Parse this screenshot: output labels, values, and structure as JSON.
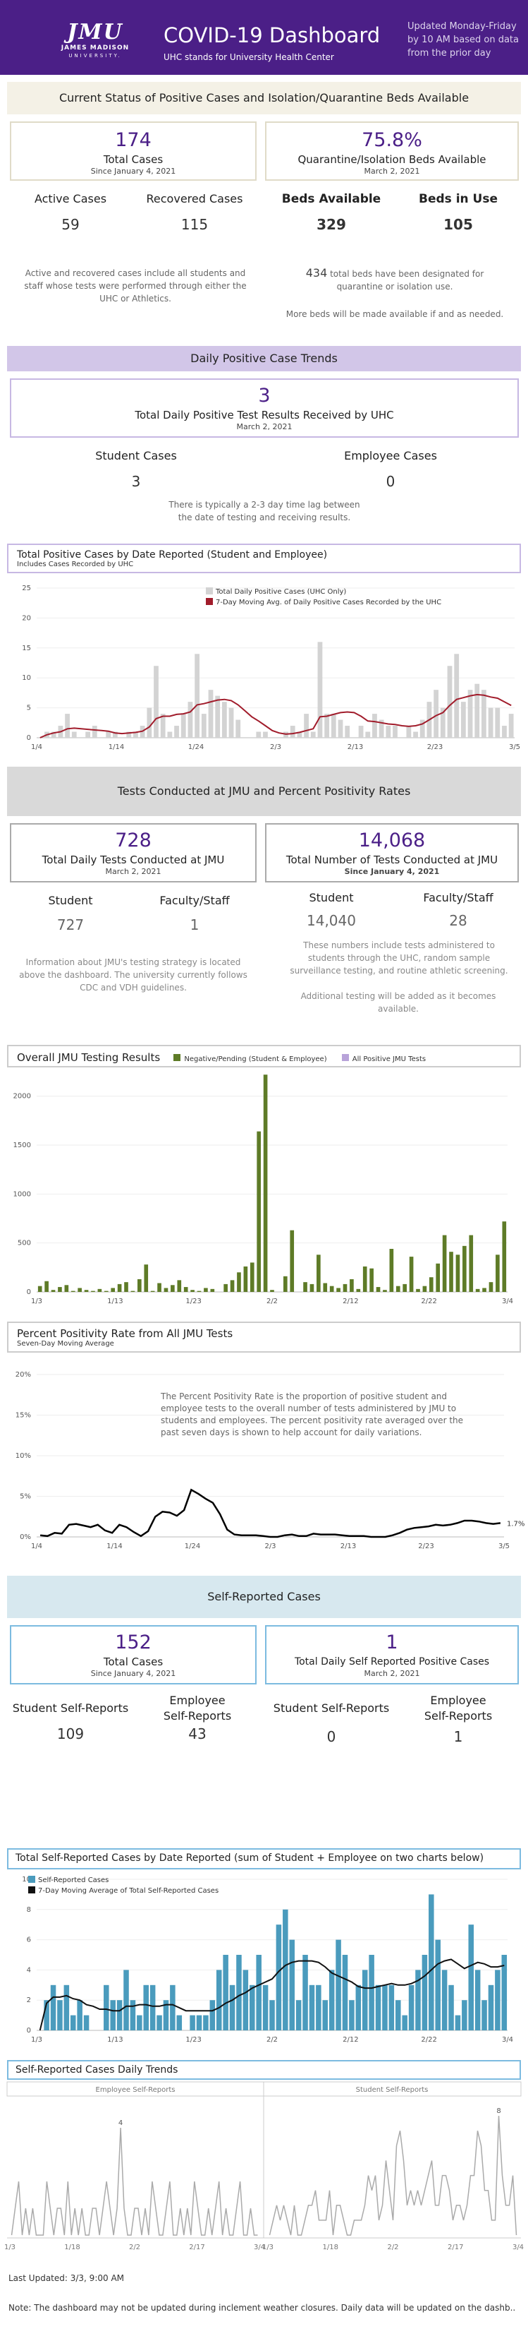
{
  "header": {
    "logo": "JMU",
    "logo_sub1": "JAMES MADISON",
    "logo_sub2": "UNIVERSITY.",
    "title": "COVID-19 Dashboard",
    "subtitle": "UHC stands for University Health Center",
    "update_note": "Updated Monday-Friday by 10 AM based on data from the prior day"
  },
  "status": {
    "band": "Current Status of Positive Cases and Isolation/Quarantine Beds Available",
    "total_cases": "174",
    "total_cases_label": "Total Cases",
    "total_cases_since": "Since January 4, 2021",
    "quarantine_pct": "75.8%",
    "quarantine_label": "Quarantine/Isolation Beds Available",
    "quarantine_date": "March 2, 2021",
    "active_label": "Active Cases",
    "active_value": "59",
    "recovered_label": "Recovered Cases",
    "recovered_value": "115",
    "beds_avail_label": "Beds Available",
    "beds_avail_value": "329",
    "beds_use_label": "Beds in Use",
    "beds_use_value": "105",
    "cases_note": "Active and recovered cases include all students and staff whose tests were performed through either the UHC or Athletics.",
    "beds_note_num": "434",
    "beds_note": "total beds have been designated for quarantine or isolation use.",
    "beds_more": "More beds will be made available if and as needed."
  },
  "daily": {
    "band": "Daily Positive Case Trends",
    "value": "3",
    "label": "Total Daily Positive Test Results Received by UHC",
    "date": "March 2, 2021",
    "student_label": "Student Cases",
    "student_value": "3",
    "employee_label": "Employee Cases",
    "employee_value": "0",
    "note": "There is typically a 2-3 day time lag between the date of testing and receiving results."
  },
  "chart1": {
    "title": "Total Positive Cases by Date Reported (Student and Employee)",
    "subtitle": "Includes Cases Recorded by UHC",
    "legend_bar": "Total Daily Positive Cases (UHC Only)",
    "legend_line": "7-Day Moving Avg. of Daily Positive Cases Recorded by the UHC",
    "yticks": [
      "0",
      "5",
      "10",
      "15",
      "20",
      "25"
    ],
    "xticks": [
      "1/4",
      "1/14",
      "1/24",
      "2/3",
      "2/13",
      "2/23",
      "3/5"
    ],
    "bar_color": "#d3d3d3",
    "line_color": "#a11c2b"
  },
  "tests": {
    "band": "Tests Conducted at JMU and Percent Positivity Rates",
    "daily_value": "728",
    "daily_label": "Total Daily Tests Conducted at JMU",
    "daily_date": "March 2, 2021",
    "total_value": "14,068",
    "total_label": "Total Number of Tests Conducted at JMU",
    "total_since": "Since January 4, 2021",
    "student_label": "Student",
    "student_daily": "727",
    "faculty_label": "Faculty/Staff",
    "faculty_daily": "1",
    "student_total": "14,040",
    "faculty_total": "28",
    "strategy_note": "Information about JMU's testing strategy is located above the dashboard. The university currently follows CDC and VDH guidelines.",
    "total_note": "These numbers include tests administered to students through the UHC, random sample surveillance testing, and routine athletic screening.",
    "additional_note": "Additional testing will be added as it becomes available."
  },
  "chart2": {
    "title": "Overall JMU Testing Results",
    "legend_neg": "Negative/Pending (Student & Employee)",
    "legend_pos": "All Positive JMU Tests",
    "yticks": [
      "0",
      "500",
      "1000",
      "1500",
      "2000"
    ],
    "xticks": [
      "1/3",
      "1/13",
      "1/23",
      "2/2",
      "2/12",
      "2/22",
      "3/4"
    ],
    "neg_color": "#5e7b27",
    "pos_color": "#b8a3d9"
  },
  "chart3": {
    "title": "Percent Positivity Rate from All JMU Tests",
    "subtitle": "Seven-Day Moving Average",
    "note": "The Percent Positivity Rate is the proportion of positive student and employee tests to the overall number of tests administered by JMU to students and employees. The percent positivity rate averaged over the past seven days is shown to help account for daily variations.",
    "yticks": [
      "0%",
      "5%",
      "10%",
      "15%",
      "20%"
    ],
    "xticks": [
      "1/4",
      "1/14",
      "1/24",
      "2/3",
      "2/13",
      "2/23",
      "3/5"
    ],
    "last_label": "1.7%"
  },
  "self": {
    "band": "Self-Reported Cases",
    "total_value": "152",
    "total_label": "Total Cases",
    "total_since": "Since January 4, 2021",
    "daily_value": "1",
    "daily_label": "Total Daily Self Reported Positive Cases",
    "daily_date": "March 2, 2021",
    "student_label": "Student Self-Reports",
    "student_total": "109",
    "employee_label1": "Employee",
    "employee_label2": "Self-Reports",
    "employee_total": "43",
    "student_daily": "0",
    "employee_daily": "1"
  },
  "chart4": {
    "title": "Total Self-Reported Cases by Date Reported (sum of Student + Employee on two charts below)",
    "legend_bar": "Self-Reported Cases",
    "legend_line": "7-Day Moving Average of Total Self-Reported Cases",
    "yticks": [
      "0",
      "2",
      "4",
      "6",
      "8",
      "10"
    ],
    "xticks": [
      "1/3",
      "1/13",
      "1/23",
      "2/2",
      "2/12",
      "2/22",
      "3/4"
    ],
    "bar_color": "#4a9bbd"
  },
  "chart5": {
    "title": "Self-Reported Cases Daily Trends",
    "left_label": "Employee Self-Reports",
    "right_label": "Student Self-Reports",
    "left_xticks": [
      "1/3",
      "1/18",
      "2/2",
      "2/17",
      "3/4"
    ],
    "right_xticks": [
      "1/3",
      "1/18",
      "2/2",
      "2/17",
      "3/4"
    ],
    "left_peak": "4",
    "right_peak": "8"
  },
  "footer": {
    "updated": "Last Updated: 3/3, 9:00 AM",
    "note": "Note: The dashboard may not be updated during inclement weather closures. Daily data will be updated on the dashb.."
  },
  "chart_data": [
    {
      "type": "bar",
      "title": "Total Positive Cases by Date Reported (Student and Employee)",
      "x_start": "2021-01-04",
      "ylim": [
        0,
        25
      ],
      "series": [
        {
          "name": "Total Daily Positive Cases (UHC Only)",
          "values": [
            0,
            1,
            1,
            2,
            4,
            1,
            0,
            1,
            2,
            0,
            1,
            1,
            0,
            1,
            1,
            2,
            5,
            12,
            4,
            1,
            2,
            4,
            6,
            14,
            4,
            8,
            7,
            6,
            5,
            3,
            0,
            0,
            1,
            1,
            0,
            0,
            1,
            2,
            1,
            4,
            1,
            16,
            4,
            4,
            3,
            2,
            0,
            2,
            1,
            4,
            3,
            2,
            2,
            0,
            2,
            1,
            3,
            6,
            8,
            5,
            12,
            14,
            6,
            8,
            9,
            8,
            5,
            5,
            2,
            4
          ]
        },
        {
          "name": "7-Day Moving Avg. of Daily Positive Cases Recorded by the UHC",
          "values": [
            0,
            0.5,
            0.8,
            1,
            1.5,
            1.6,
            1.5,
            1.4,
            1.3,
            1.2,
            1.1,
            0.8,
            0.7,
            0.8,
            0.9,
            1.1,
            1.8,
            3.2,
            3.6,
            3.6,
            3.9,
            4,
            4.3,
            5.5,
            5.7,
            6,
            6.3,
            6.4,
            6.2,
            5.5,
            4.5,
            3.5,
            2.8,
            2,
            1.2,
            0.8,
            0.6,
            0.7,
            0.9,
            1.2,
            1.5,
            3.5,
            3.6,
            3.9,
            4.2,
            4.3,
            4.2,
            3.6,
            2.8,
            2.7,
            2.5,
            2.3,
            2.2,
            2,
            1.9,
            2,
            2.3,
            3,
            3.7,
            4.2,
            5.4,
            6.4,
            6.7,
            7,
            7.2,
            7.1,
            6.8,
            6.6,
            6,
            5.4
          ]
        }
      ]
    },
    {
      "type": "bar",
      "title": "Overall JMU Testing Results",
      "x_start": "2021-01-03",
      "ylim": [
        0,
        2200
      ],
      "series": [
        {
          "name": "Negative/Pending (Student & Employee)",
          "values": [
            60,
            110,
            20,
            50,
            70,
            10,
            40,
            20,
            10,
            30,
            10,
            40,
            80,
            100,
            10,
            130,
            280,
            10,
            90,
            40,
            70,
            120,
            50,
            20,
            10,
            40,
            30,
            0,
            80,
            120,
            200,
            260,
            300,
            1640,
            2220,
            20,
            0,
            160,
            630,
            0,
            100,
            80,
            380,
            90,
            60,
            40,
            80,
            130,
            30,
            260,
            240,
            50,
            20,
            440,
            60,
            80,
            360,
            30,
            60,
            150,
            290,
            580,
            410,
            380,
            470,
            580,
            30,
            40,
            100,
            380,
            720
          ]
        }
      ]
    },
    {
      "type": "line",
      "title": "Percent Positivity Rate from All JMU Tests",
      "x_start": "2021-01-04",
      "ylim": [
        0,
        20
      ],
      "series": [
        {
          "name": "Seven-Day Moving Average",
          "values": [
            0.2,
            0.1,
            0.5,
            0.4,
            1.5,
            1.6,
            1.4,
            1.2,
            1.5,
            0.8,
            0.5,
            1.5,
            1.2,
            0.6,
            0.1,
            0.7,
            2.5,
            3.1,
            3.0,
            2.6,
            3.3,
            5.8,
            5.3,
            4.7,
            4.2,
            2.8,
            0.9,
            0.3,
            0.2,
            0.2,
            0.2,
            0.1,
            0.0,
            0.0,
            0.2,
            0.3,
            0.1,
            0.1,
            0.4,
            0.3,
            0.3,
            0.3,
            0.2,
            0.1,
            0.1,
            0.1,
            0.0,
            0.0,
            0.0,
            0.2,
            0.5,
            0.9,
            1.1,
            1.2,
            1.3,
            1.5,
            1.4,
            1.5,
            1.7,
            2.0,
            2.0,
            1.9,
            1.7,
            1.6,
            1.7
          ]
        }
      ]
    },
    {
      "type": "bar",
      "title": "Total Self-Reported Cases by Date Reported (sum of Student + Employee on two charts below)",
      "x_start": "2021-01-03",
      "ylim": [
        0,
        10
      ],
      "series": [
        {
          "name": "Self-Reported Cases",
          "values": [
            0,
            2,
            3,
            2,
            3,
            1,
            2,
            1,
            0,
            0,
            3,
            2,
            2,
            4,
            2,
            1,
            3,
            3,
            1,
            2,
            3,
            1,
            0,
            1,
            1,
            1,
            2,
            4,
            5,
            3,
            5,
            4,
            3,
            5,
            3,
            2,
            7,
            8,
            6,
            2,
            5,
            3,
            3,
            2,
            4,
            6,
            5,
            2,
            3,
            4,
            5,
            3,
            3,
            3,
            2,
            1,
            3,
            4,
            5,
            9,
            6,
            4,
            3,
            1,
            2,
            7,
            4,
            2,
            3,
            4,
            5
          ]
        },
        {
          "name": "7-Day Moving Average of Total Self-Reported Cases",
          "values": [
            0,
            1.8,
            2.2,
            2.2,
            2.3,
            2.1,
            2.0,
            1.7,
            1.6,
            1.4,
            1.4,
            1.3,
            1.3,
            1.6,
            1.6,
            1.7,
            1.7,
            1.6,
            1.6,
            1.7,
            1.7,
            1.5,
            1.3,
            1.3,
            1.3,
            1.3,
            1.3,
            1.5,
            1.8,
            2.0,
            2.3,
            2.5,
            2.8,
            3.0,
            3.2,
            3.4,
            3.9,
            4.3,
            4.5,
            4.6,
            4.6,
            4.6,
            4.5,
            4.2,
            3.8,
            3.6,
            3.4,
            3.2,
            2.9,
            2.8,
            2.8,
            2.9,
            3.0,
            3.1,
            3.0,
            3.0,
            3.1,
            3.3,
            3.6,
            4.0,
            4.4,
            4.6,
            4.7,
            4.4,
            4.1,
            4.3,
            4.5,
            4.4,
            4.2,
            4.2,
            4.3
          ]
        }
      ]
    },
    {
      "type": "line",
      "title": "Employee Self-Reports",
      "x_start": "2021-01-03",
      "ylim": [
        0,
        5
      ],
      "series": [
        {
          "name": "Employee Self-Reports",
          "values": [
            0,
            1,
            2,
            0,
            1,
            0,
            1,
            0,
            0,
            0,
            2,
            1,
            0,
            1,
            1,
            0,
            2,
            0,
            1,
            0,
            1,
            0,
            0,
            1,
            1,
            0,
            1,
            2,
            1,
            0,
            1,
            4,
            1,
            0,
            0,
            1,
            1,
            0,
            1,
            0,
            2,
            1,
            0,
            0,
            1,
            2,
            0,
            0,
            1,
            0,
            1,
            0,
            2,
            1,
            0,
            0,
            1,
            0,
            1,
            2,
            0,
            1,
            0,
            0,
            1,
            2,
            0,
            0,
            1,
            0,
            0
          ]
        }
      ]
    },
    {
      "type": "line",
      "title": "Student Self-Reports",
      "x_start": "2021-01-03",
      "ylim": [
        0,
        9
      ],
      "series": [
        {
          "name": "Student Self-Reports",
          "values": [
            0,
            1,
            2,
            1,
            2,
            1,
            0,
            2,
            0,
            0,
            1,
            2,
            2,
            3,
            1,
            1,
            1,
            3,
            0,
            2,
            2,
            1,
            0,
            0,
            1,
            1,
            1,
            2,
            4,
            3,
            4,
            1,
            2,
            5,
            3,
            1,
            6,
            7,
            5,
            2,
            3,
            2,
            3,
            2,
            3,
            4,
            5,
            2,
            2,
            4,
            4,
            3,
            1,
            2,
            2,
            1,
            2,
            4,
            4,
            7,
            6,
            3,
            3,
            1,
            1,
            8,
            4,
            2,
            2,
            4,
            0
          ]
        }
      ]
    }
  ]
}
